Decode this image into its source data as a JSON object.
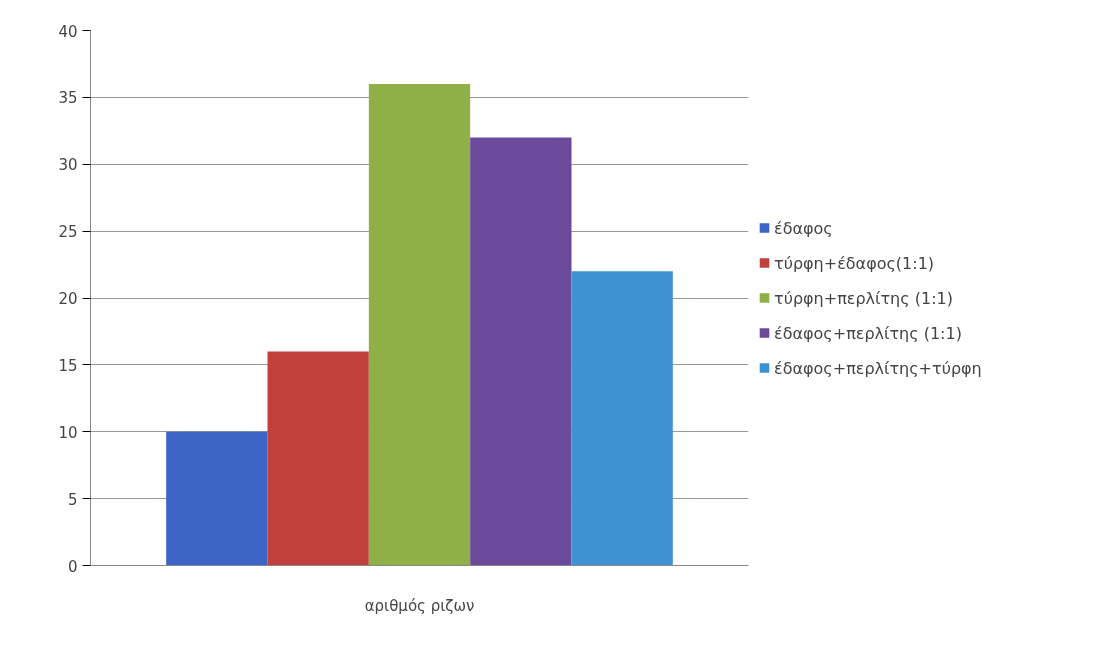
{
  "chart_data": {
    "type": "bar",
    "categories": [
      "αριθμός ριζων"
    ],
    "series": [
      {
        "name": "έδαφος",
        "color": "#3c63c6",
        "values": [
          10
        ]
      },
      {
        "name": "τύρφη+έδαφος(1:1)",
        "color": "#c1403c",
        "values": [
          16
        ]
      },
      {
        "name": "τύρφη+περλίτης (1:1)",
        "color": "#8fb046",
        "values": [
          36
        ]
      },
      {
        "name": "έδαφος+περλίτης (1:1)",
        "color": "#6b4a9c",
        "values": [
          32
        ]
      },
      {
        "name": "έδαφος+περλίτης+τύρφη",
        "color": "#3f92d2",
        "values": [
          22
        ]
      }
    ],
    "ylim": [
      0,
      40
    ],
    "yticks": [
      0,
      5,
      10,
      15,
      20,
      25,
      30,
      35,
      40
    ],
    "grid": "y",
    "legend": "right"
  }
}
